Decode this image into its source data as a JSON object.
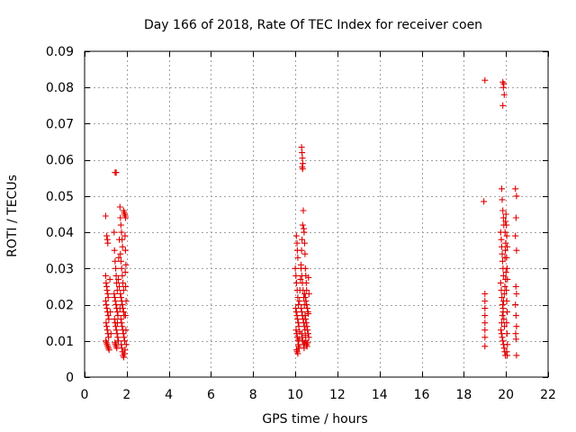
{
  "chart_data": {
    "type": "scatter",
    "title": "Day 166 of 2018, Rate Of TEC Index for receiver coen",
    "xlabel": "GPS time / hours",
    "ylabel": "ROTI / TECUs",
    "xlim": [
      0,
      22
    ],
    "ylim": [
      0,
      0.09
    ],
    "x_ticks": [
      0,
      2,
      4,
      6,
      8,
      10,
      12,
      14,
      16,
      18,
      20,
      22
    ],
    "y_ticks": [
      "0",
      "0.01",
      "0.02",
      "0.03",
      "0.04",
      "0.05",
      "0.06",
      "0.07",
      "0.08",
      "0.09"
    ],
    "y_tick_values": [
      0,
      0.01,
      0.02,
      0.03,
      0.04,
      0.05,
      0.06,
      0.07,
      0.08,
      0.09
    ],
    "grid": true,
    "marker": "+",
    "color": "#e00000",
    "series": [
      {
        "name": "ROTI",
        "points": [
          [
            1.0,
            0.0445
          ],
          [
            1.05,
            0.039
          ],
          [
            1.08,
            0.038
          ],
          [
            1.1,
            0.037
          ],
          [
            1.0,
            0.028
          ],
          [
            1.02,
            0.026
          ],
          [
            1.05,
            0.025
          ],
          [
            1.07,
            0.024
          ],
          [
            1.1,
            0.023
          ],
          [
            1.12,
            0.022
          ],
          [
            1.0,
            0.021
          ],
          [
            1.03,
            0.02
          ],
          [
            1.06,
            0.019
          ],
          [
            1.09,
            0.018
          ],
          [
            1.12,
            0.017
          ],
          [
            1.15,
            0.016
          ],
          [
            1.02,
            0.015
          ],
          [
            1.05,
            0.014
          ],
          [
            1.08,
            0.013
          ],
          [
            1.11,
            0.012
          ],
          [
            1.14,
            0.011
          ],
          [
            1.01,
            0.01
          ],
          [
            1.04,
            0.0095
          ],
          [
            1.07,
            0.009
          ],
          [
            1.1,
            0.0085
          ],
          [
            1.13,
            0.008
          ],
          [
            1.16,
            0.0075
          ],
          [
            1.2,
            0.027
          ],
          [
            1.22,
            0.018
          ],
          [
            1.25,
            0.012
          ],
          [
            1.45,
            0.0565
          ],
          [
            1.5,
            0.0565
          ],
          [
            1.4,
            0.04
          ],
          [
            1.42,
            0.035
          ],
          [
            1.45,
            0.032
          ],
          [
            1.48,
            0.03
          ],
          [
            1.5,
            0.028
          ],
          [
            1.52,
            0.026
          ],
          [
            1.55,
            0.024
          ],
          [
            1.4,
            0.023
          ],
          [
            1.43,
            0.022
          ],
          [
            1.46,
            0.021
          ],
          [
            1.49,
            0.02
          ],
          [
            1.52,
            0.019
          ],
          [
            1.55,
            0.018
          ],
          [
            1.58,
            0.017
          ],
          [
            1.42,
            0.016
          ],
          [
            1.45,
            0.015
          ],
          [
            1.48,
            0.014
          ],
          [
            1.51,
            0.013
          ],
          [
            1.54,
            0.012
          ],
          [
            1.57,
            0.011
          ],
          [
            1.6,
            0.01
          ],
          [
            1.44,
            0.0095
          ],
          [
            1.47,
            0.009
          ],
          [
            1.5,
            0.0085
          ],
          [
            1.53,
            0.008
          ],
          [
            1.56,
            0.015
          ],
          [
            1.6,
            0.027
          ],
          [
            1.62,
            0.033
          ],
          [
            1.65,
            0.038
          ],
          [
            1.68,
            0.047
          ],
          [
            1.7,
            0.044
          ],
          [
            1.72,
            0.042
          ],
          [
            1.75,
            0.04
          ],
          [
            1.78,
            0.038
          ],
          [
            1.8,
            0.036
          ],
          [
            1.7,
            0.034
          ],
          [
            1.73,
            0.032
          ],
          [
            1.76,
            0.03
          ],
          [
            1.79,
            0.028
          ],
          [
            1.82,
            0.026
          ],
          [
            1.85,
            0.024
          ],
          [
            1.7,
            0.023
          ],
          [
            1.73,
            0.022
          ],
          [
            1.76,
            0.021
          ],
          [
            1.79,
            0.02
          ],
          [
            1.82,
            0.019
          ],
          [
            1.85,
            0.018
          ],
          [
            1.88,
            0.017
          ],
          [
            1.72,
            0.016
          ],
          [
            1.75,
            0.015
          ],
          [
            1.78,
            0.014
          ],
          [
            1.81,
            0.013
          ],
          [
            1.84,
            0.012
          ],
          [
            1.87,
            0.011
          ],
          [
            1.9,
            0.01
          ],
          [
            1.74,
            0.009
          ],
          [
            1.77,
            0.008
          ],
          [
            1.8,
            0.007
          ],
          [
            1.83,
            0.006
          ],
          [
            1.86,
            0.0055
          ],
          [
            1.89,
            0.0065
          ],
          [
            1.92,
            0.0075
          ],
          [
            1.85,
            0.046
          ],
          [
            1.88,
            0.0455
          ],
          [
            1.9,
            0.045
          ],
          [
            1.93,
            0.0445
          ],
          [
            1.95,
            0.044
          ],
          [
            1.92,
            0.039
          ],
          [
            1.94,
            0.035
          ],
          [
            1.96,
            0.031
          ],
          [
            1.93,
            0.029
          ],
          [
            1.95,
            0.025
          ],
          [
            1.97,
            0.021
          ],
          [
            1.94,
            0.017
          ],
          [
            1.96,
            0.013
          ],
          [
            1.98,
            0.009
          ],
          [
            1.65,
            0.025
          ],
          [
            1.68,
            0.019
          ],
          [
            10.05,
            0.039
          ],
          [
            10.08,
            0.037
          ],
          [
            10.1,
            0.035
          ],
          [
            10.12,
            0.033
          ],
          [
            10.0,
            0.03
          ],
          [
            10.03,
            0.028
          ],
          [
            10.06,
            0.026
          ],
          [
            10.09,
            0.024
          ],
          [
            10.12,
            0.022
          ],
          [
            10.15,
            0.02
          ],
          [
            10.02,
            0.019
          ],
          [
            10.05,
            0.018
          ],
          [
            10.08,
            0.017
          ],
          [
            10.11,
            0.016
          ],
          [
            10.14,
            0.015
          ],
          [
            10.17,
            0.014
          ],
          [
            10.04,
            0.013
          ],
          [
            10.07,
            0.012
          ],
          [
            10.1,
            0.011
          ],
          [
            10.13,
            0.01
          ],
          [
            10.16,
            0.009
          ],
          [
            10.19,
            0.008
          ],
          [
            10.06,
            0.0075
          ],
          [
            10.09,
            0.007
          ],
          [
            10.12,
            0.0065
          ],
          [
            10.15,
            0.0085
          ],
          [
            10.18,
            0.0105
          ],
          [
            10.21,
            0.0125
          ],
          [
            10.2,
            0.021
          ],
          [
            10.22,
            0.024
          ],
          [
            10.25,
            0.027
          ],
          [
            10.27,
            0.031
          ],
          [
            10.3,
            0.035
          ],
          [
            10.32,
            0.038
          ],
          [
            10.35,
            0.042
          ],
          [
            10.38,
            0.046
          ],
          [
            10.3,
            0.0635
          ],
          [
            10.32,
            0.062
          ],
          [
            10.34,
            0.0605
          ],
          [
            10.36,
            0.059
          ],
          [
            10.33,
            0.058
          ],
          [
            10.35,
            0.0575
          ],
          [
            10.28,
            0.03
          ],
          [
            10.31,
            0.028
          ],
          [
            10.34,
            0.026
          ],
          [
            10.37,
            0.024
          ],
          [
            10.4,
            0.022
          ],
          [
            10.43,
            0.02
          ],
          [
            10.28,
            0.019
          ],
          [
            10.31,
            0.018
          ],
          [
            10.34,
            0.017
          ],
          [
            10.37,
            0.016
          ],
          [
            10.4,
            0.015
          ],
          [
            10.43,
            0.014
          ],
          [
            10.46,
            0.013
          ],
          [
            10.3,
            0.012
          ],
          [
            10.33,
            0.011
          ],
          [
            10.36,
            0.01
          ],
          [
            10.39,
            0.009
          ],
          [
            10.42,
            0.008
          ],
          [
            10.45,
            0.0095
          ],
          [
            10.48,
            0.0115
          ],
          [
            10.4,
            0.041
          ],
          [
            10.42,
            0.04
          ],
          [
            10.44,
            0.037
          ],
          [
            10.46,
            0.034
          ],
          [
            10.48,
            0.03
          ],
          [
            10.5,
            0.028
          ],
          [
            10.52,
            0.026
          ],
          [
            10.54,
            0.024
          ],
          [
            10.45,
            0.023
          ],
          [
            10.48,
            0.022
          ],
          [
            10.51,
            0.021
          ],
          [
            10.54,
            0.02
          ],
          [
            10.57,
            0.019
          ],
          [
            10.6,
            0.018
          ],
          [
            10.46,
            0.017
          ],
          [
            10.49,
            0.016
          ],
          [
            10.52,
            0.015
          ],
          [
            10.55,
            0.014
          ],
          [
            10.58,
            0.013
          ],
          [
            10.61,
            0.012
          ],
          [
            10.64,
            0.011
          ],
          [
            10.5,
            0.01
          ],
          [
            10.53,
            0.009
          ],
          [
            10.56,
            0.0085
          ],
          [
            10.59,
            0.0095
          ],
          [
            10.62,
            0.0175
          ],
          [
            10.65,
            0.023
          ],
          [
            10.63,
            0.0275
          ],
          [
            19.0,
            0.082
          ],
          [
            18.95,
            0.0485
          ],
          [
            19.0,
            0.023
          ],
          [
            19.0,
            0.021
          ],
          [
            19.0,
            0.019
          ],
          [
            19.0,
            0.017
          ],
          [
            19.0,
            0.015
          ],
          [
            19.0,
            0.013
          ],
          [
            19.0,
            0.011
          ],
          [
            19.0,
            0.0085
          ],
          [
            19.85,
            0.0815
          ],
          [
            19.9,
            0.081
          ],
          [
            19.88,
            0.08
          ],
          [
            19.92,
            0.078
          ],
          [
            19.85,
            0.075
          ],
          [
            19.8,
            0.052
          ],
          [
            19.82,
            0.049
          ],
          [
            19.85,
            0.046
          ],
          [
            19.88,
            0.044
          ],
          [
            19.9,
            0.042
          ],
          [
            19.75,
            0.04
          ],
          [
            19.78,
            0.038
          ],
          [
            19.8,
            0.036
          ],
          [
            19.82,
            0.034
          ],
          [
            19.84,
            0.032
          ],
          [
            19.86,
            0.03
          ],
          [
            19.88,
            0.028
          ],
          [
            19.75,
            0.026
          ],
          [
            19.78,
            0.024
          ],
          [
            19.81,
            0.022
          ],
          [
            19.84,
            0.02
          ],
          [
            19.87,
            0.018
          ],
          [
            19.9,
            0.016
          ],
          [
            19.93,
            0.014
          ],
          [
            19.76,
            0.013
          ],
          [
            19.79,
            0.012
          ],
          [
            19.82,
            0.011
          ],
          [
            19.85,
            0.01
          ],
          [
            19.88,
            0.009
          ],
          [
            19.91,
            0.008
          ],
          [
            19.94,
            0.007
          ],
          [
            19.97,
            0.006
          ],
          [
            19.8,
            0.015
          ],
          [
            19.83,
            0.017
          ],
          [
            19.86,
            0.019
          ],
          [
            19.89,
            0.021
          ],
          [
            19.92,
            0.023
          ],
          [
            19.95,
            0.025
          ],
          [
            19.98,
            0.027
          ],
          [
            20.0,
            0.029
          ],
          [
            20.0,
            0.045
          ],
          [
            20.02,
            0.042
          ],
          [
            20.04,
            0.039
          ],
          [
            20.06,
            0.036
          ],
          [
            20.03,
            0.033
          ],
          [
            20.05,
            0.03
          ],
          [
            20.07,
            0.027
          ],
          [
            20.02,
            0.024
          ],
          [
            20.04,
            0.021
          ],
          [
            20.06,
            0.018
          ],
          [
            20.03,
            0.015
          ],
          [
            20.05,
            0.012
          ],
          [
            20.07,
            0.009
          ],
          [
            20.04,
            0.007
          ],
          [
            20.06,
            0.006
          ],
          [
            19.95,
            0.033
          ],
          [
            19.97,
            0.035
          ],
          [
            19.99,
            0.037
          ],
          [
            19.96,
            0.04
          ],
          [
            19.98,
            0.043
          ],
          [
            20.45,
            0.052
          ],
          [
            20.5,
            0.05
          ],
          [
            20.48,
            0.044
          ],
          [
            20.45,
            0.039
          ],
          [
            20.5,
            0.035
          ],
          [
            20.47,
            0.025
          ],
          [
            20.5,
            0.023
          ],
          [
            20.45,
            0.02
          ],
          [
            20.48,
            0.017
          ],
          [
            20.5,
            0.014
          ],
          [
            20.46,
            0.012
          ],
          [
            20.48,
            0.0105
          ],
          [
            20.5,
            0.006
          ]
        ]
      }
    ]
  }
}
